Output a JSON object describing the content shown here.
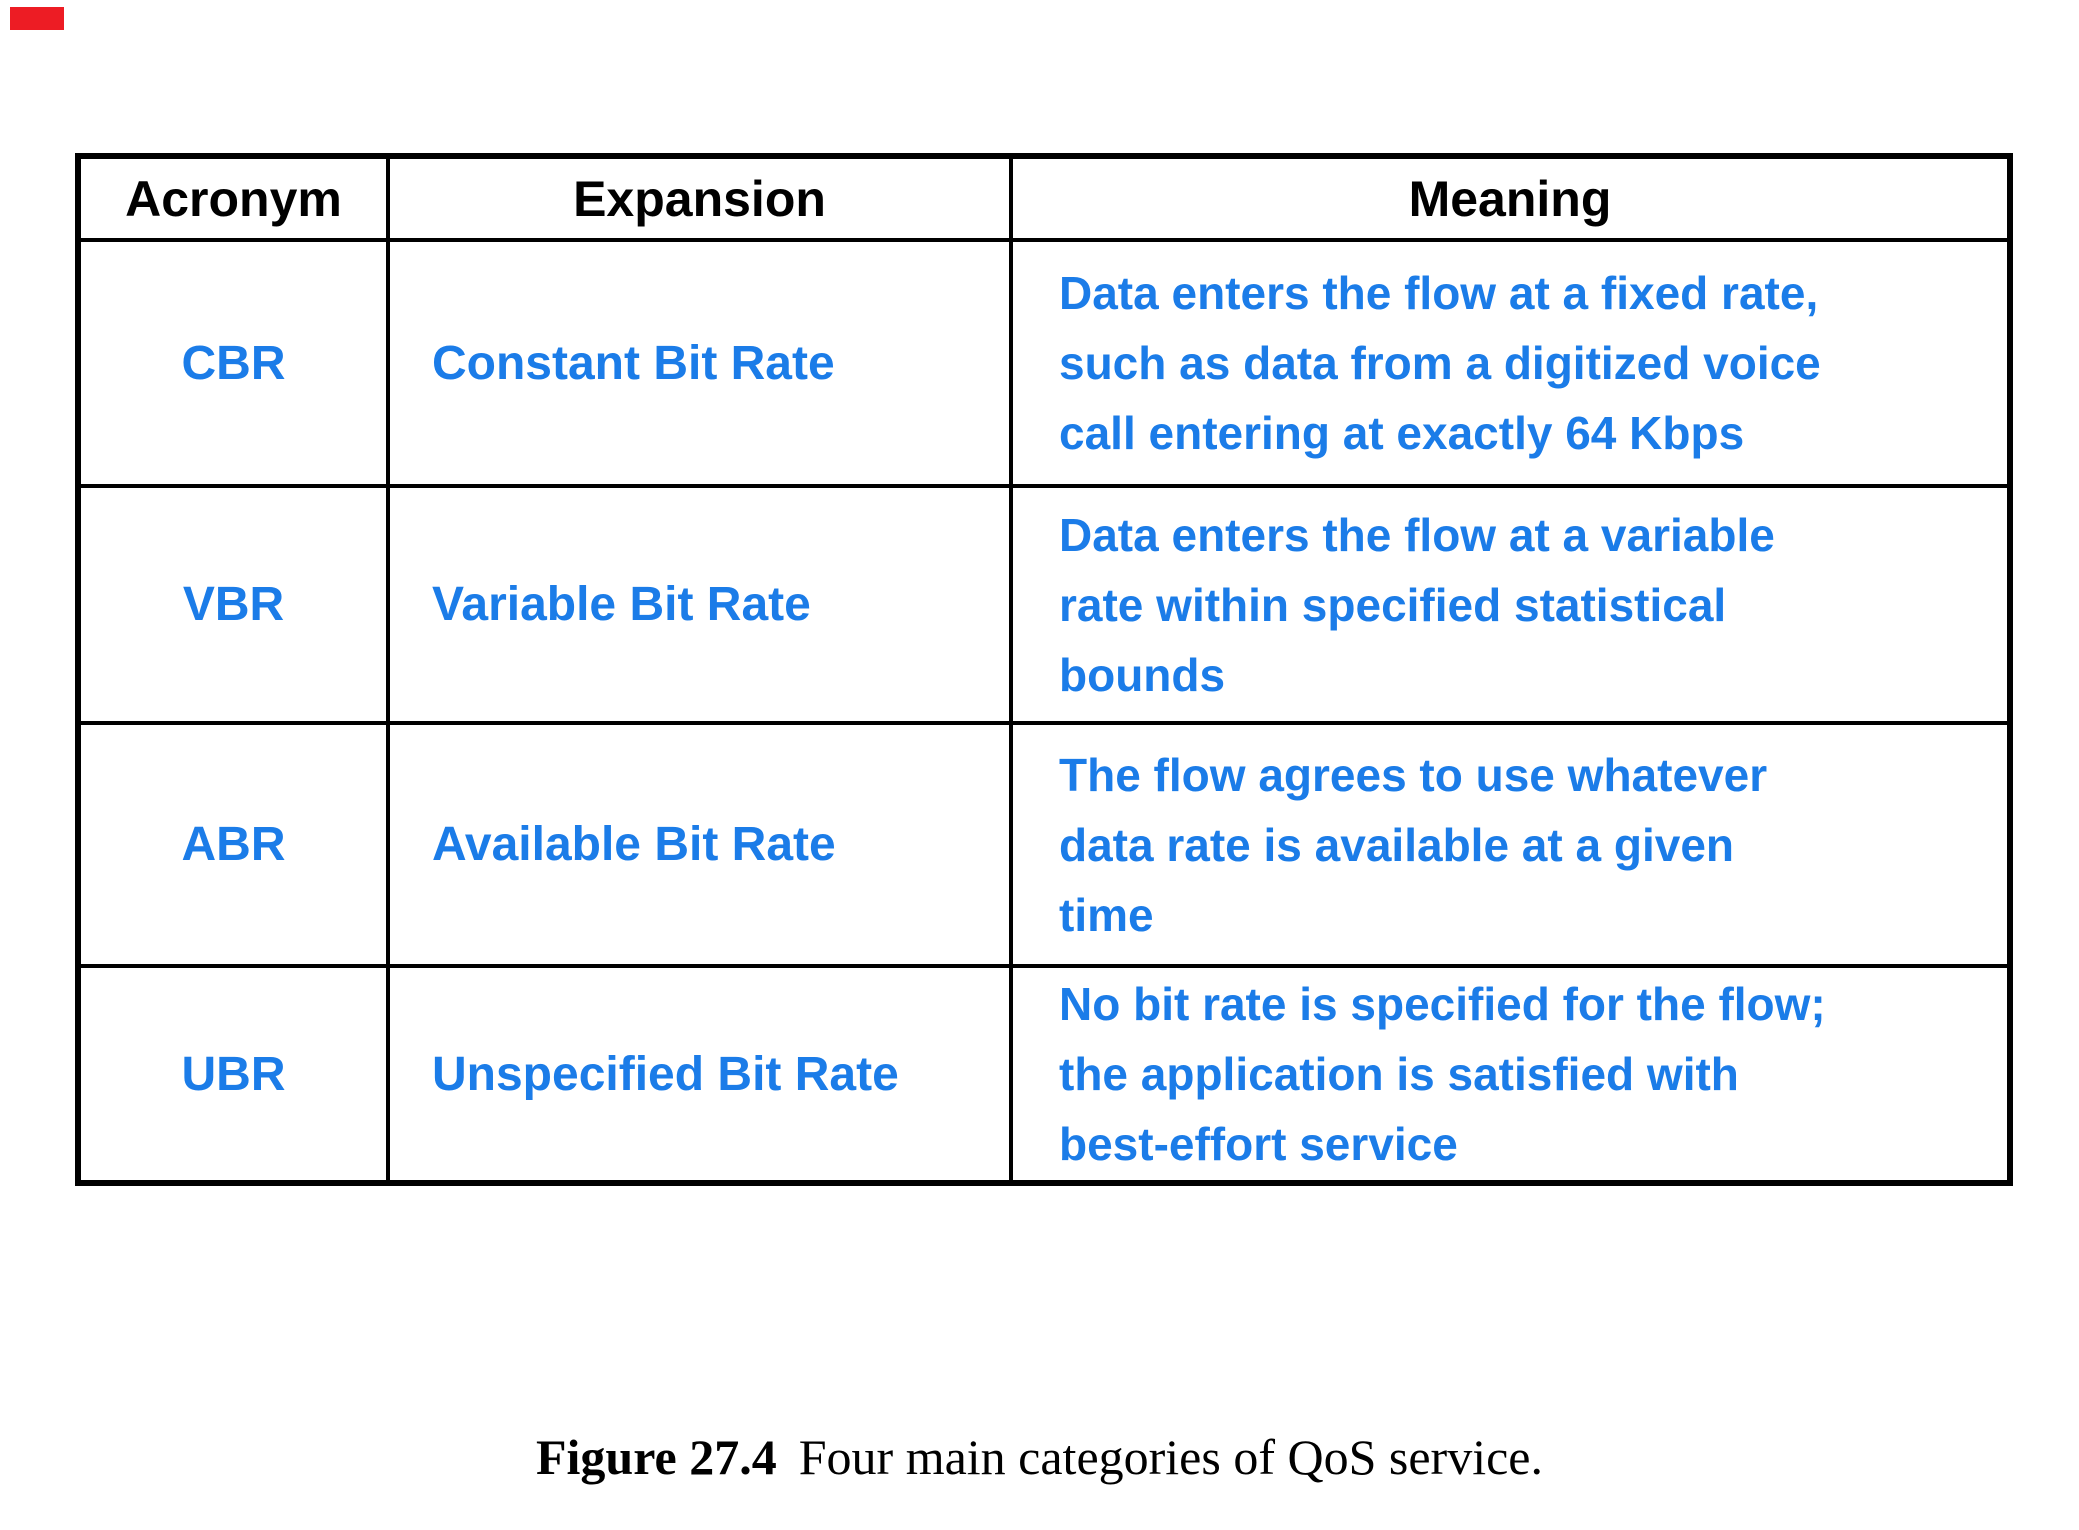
{
  "page": {
    "background": "#ffffff"
  },
  "corner_mark": {
    "color": "#ed1c24"
  },
  "table": {
    "header_color": "#000000",
    "body_text_color": "#1b7ce8",
    "border_color": "#000000",
    "columns": [
      "Acronym",
      "Expansion",
      "Meaning"
    ],
    "rows": [
      {
        "acronym": "CBR",
        "expansion": "Constant Bit Rate",
        "meaning": "Data enters the flow at a fixed rate,\nsuch as data from a digitized voice\ncall entering at exactly 64 Kbps"
      },
      {
        "acronym": "VBR",
        "expansion": "Variable Bit Rate",
        "meaning": "Data enters the flow at a variable\nrate within specified statistical\nbounds"
      },
      {
        "acronym": "ABR",
        "expansion": "Available Bit Rate",
        "meaning": "The flow agrees to use whatever\ndata rate is available at a given\ntime"
      },
      {
        "acronym": "UBR",
        "expansion": "Unspecified Bit Rate",
        "meaning": "No bit rate is specified for the flow;\nthe application is satisfied with\nbest-effort service"
      }
    ]
  },
  "caption": {
    "label": "Figure 27.4",
    "text": "Four main categories of QoS service."
  }
}
